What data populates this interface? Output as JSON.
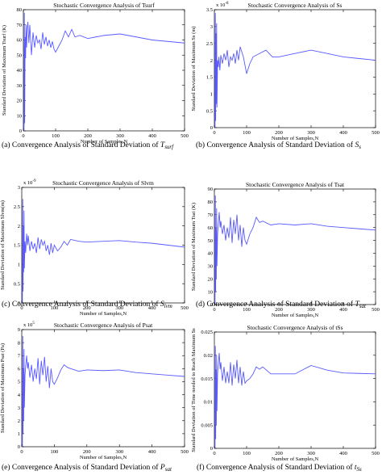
{
  "chart_data": [
    {
      "type": "line",
      "title": "Stochastic Convergence Analysis of Tsurf",
      "xlabel": "Number of Samples,N",
      "ylabel": "Standard Deviation of Maximum Tsurf  (K)",
      "y_exponent": "",
      "xlim": [
        0,
        500
      ],
      "ylim": [
        0,
        80
      ],
      "xticks": [
        "0",
        "100",
        "200",
        "300",
        "400",
        "500"
      ],
      "yticks": [
        "0",
        "10",
        "20",
        "30",
        "40",
        "50",
        "60",
        "70",
        "80"
      ],
      "grid": false,
      "caption": {
        "letter": "(a)",
        "text": "Convergence Analysis of Standard Deviation of ",
        "var": "T",
        "sub": "surf"
      },
      "x": [
        2,
        3,
        4,
        5,
        6,
        7,
        8,
        10,
        12,
        14,
        17,
        20,
        25,
        30,
        35,
        40,
        45,
        50,
        55,
        60,
        65,
        70,
        75,
        80,
        85,
        90,
        95,
        100,
        110,
        120,
        130,
        140,
        150,
        160,
        175,
        200,
        225,
        250,
        300,
        350,
        400,
        450,
        500
      ],
      "y": [
        0,
        78,
        5,
        45,
        62,
        48,
        70,
        55,
        68,
        72,
        58,
        70,
        50,
        65,
        55,
        63,
        58,
        60,
        54,
        65,
        57,
        62,
        56,
        60,
        55,
        59,
        54,
        52,
        56,
        60,
        66,
        62,
        67,
        62,
        63,
        61,
        62,
        63,
        64,
        62,
        60,
        59,
        58
      ]
    },
    {
      "type": "line",
      "title": "Stochastic Convergence Analysis of Ss",
      "xlabel": "Number of Samples,N",
      "ylabel": "Standard Deviation of Maximum Ss  (m)",
      "y_exponent": "x 10",
      "y_exponent_power": "-8",
      "xlim": [
        0,
        500
      ],
      "ylim": [
        0,
        3.5
      ],
      "xticks": [
        "0",
        "100",
        "200",
        "300",
        "400",
        "500"
      ],
      "yticks": [
        "0",
        "0.5",
        "1",
        "1.5",
        "2",
        "2.5",
        "3",
        "3.5"
      ],
      "grid": false,
      "caption": {
        "letter": "(b)",
        "text": "Convergence Analysis of Standard Deviation of ",
        "var": "S",
        "sub": "s"
      },
      "x": [
        2,
        3,
        4,
        5,
        6,
        7,
        8,
        10,
        12,
        14,
        17,
        20,
        25,
        30,
        35,
        40,
        45,
        50,
        55,
        60,
        65,
        70,
        75,
        80,
        90,
        100,
        110,
        120,
        140,
        160,
        180,
        200,
        250,
        300,
        350,
        400,
        450,
        500
      ],
      "y": [
        0,
        3.4,
        0.2,
        2.8,
        0.7,
        3.1,
        0.6,
        2.0,
        1.8,
        2.1,
        1.7,
        2.15,
        1.9,
        2.2,
        2.0,
        2.3,
        1.8,
        2.1,
        2.0,
        2.2,
        1.9,
        2.3,
        2.0,
        2.4,
        2.1,
        1.6,
        1.9,
        2.1,
        2.2,
        2.3,
        2.1,
        2.1,
        2.2,
        2.3,
        2.2,
        2.1,
        2.05,
        2.0
      ]
    },
    {
      "type": "line",
      "title": "Stochastic Convergence Analysis of Slvm",
      "xlabel": "Number of Samples,N",
      "ylabel": "Standard Deviation of Maximum Slvm(m)",
      "y_exponent": "x 10",
      "y_exponent_power": "-9",
      "xlim": [
        0,
        500
      ],
      "ylim": [
        0,
        3
      ],
      "xticks": [
        "0",
        "100",
        "200",
        "300",
        "400",
        "500"
      ],
      "yticks": [
        "0",
        "0.5",
        "1",
        "1.5",
        "2",
        "2.5",
        "3"
      ],
      "grid": false,
      "caption": {
        "letter": "(c)",
        "text": "Convergence Analysis of Standard Deviation of ",
        "var": "S",
        "sub": "lvm"
      },
      "x": [
        2,
        3,
        4,
        5,
        6,
        7,
        8,
        10,
        12,
        15,
        18,
        20,
        25,
        30,
        35,
        40,
        45,
        50,
        55,
        60,
        65,
        70,
        75,
        80,
        85,
        90,
        95,
        100,
        110,
        120,
        130,
        140,
        150,
        175,
        200,
        250,
        300,
        350,
        400,
        450,
        500
      ],
      "y": [
        0,
        2.7,
        0.3,
        2.0,
        0.8,
        2.4,
        0.9,
        1.6,
        1.3,
        1.8,
        1.5,
        1.75,
        1.35,
        1.6,
        1.4,
        1.55,
        1.3,
        1.7,
        1.4,
        1.65,
        1.5,
        1.6,
        1.35,
        1.5,
        1.25,
        1.55,
        1.3,
        1.5,
        1.35,
        1.45,
        1.6,
        1.5,
        1.65,
        1.6,
        1.58,
        1.6,
        1.62,
        1.58,
        1.55,
        1.5,
        1.45
      ]
    },
    {
      "type": "line",
      "title": "Stochastic Convergence Analysis of Tsat",
      "xlabel": "Number of Samples,N",
      "ylabel": "Standard Deviation of Maximum Tsat (K)",
      "y_exponent": "",
      "xlim": [
        0,
        500
      ],
      "ylim": [
        0,
        90
      ],
      "xticks": [
        "0",
        "100",
        "200",
        "300",
        "400",
        "500"
      ],
      "yticks": [
        "0",
        "10",
        "20",
        "30",
        "40",
        "50",
        "60",
        "70",
        "80",
        "90"
      ],
      "grid": false,
      "caption": {
        "letter": "(d)",
        "text": "Convergence Analysis of Standard Deviation of ",
        "var": "T",
        "sub": "sat"
      },
      "x": [
        2,
        3,
        4,
        5,
        6,
        7,
        8,
        10,
        12,
        15,
        18,
        20,
        25,
        30,
        35,
        40,
        45,
        50,
        55,
        60,
        65,
        70,
        75,
        80,
        85,
        90,
        95,
        100,
        110,
        120,
        130,
        140,
        150,
        175,
        200,
        250,
        300,
        350,
        400,
        450,
        500
      ],
      "y": [
        0,
        85,
        10,
        60,
        20,
        75,
        30,
        55,
        62,
        72,
        60,
        65,
        55,
        62,
        50,
        60,
        52,
        68,
        48,
        66,
        55,
        70,
        50,
        62,
        45,
        60,
        50,
        47,
        55,
        60,
        68,
        64,
        65,
        62,
        63,
        62,
        63,
        61,
        60,
        59,
        58
      ]
    },
    {
      "type": "line",
      "title": "Stochastic Convergence Analysis of Psat",
      "xlabel": "Number of Samples,N",
      "ylabel": "Standard Deviation of Maximum Psat  (Pa)",
      "y_exponent": "x 10",
      "y_exponent_power": "5",
      "xlim": [
        0,
        500
      ],
      "ylim": [
        0,
        9
      ],
      "xticks": [
        "0",
        "100",
        "200",
        "300",
        "400",
        "500"
      ],
      "yticks": [
        "0",
        "1",
        "2",
        "3",
        "4",
        "5",
        "6",
        "7",
        "8",
        "9"
      ],
      "grid": false,
      "caption": {
        "letter": "(e)",
        "text": "Convergence Analysis of Standard Deviation of ",
        "var": "P",
        "sub": "sat"
      },
      "x": [
        2,
        3,
        4,
        5,
        6,
        7,
        8,
        10,
        12,
        15,
        18,
        20,
        25,
        30,
        35,
        40,
        45,
        50,
        55,
        60,
        65,
        70,
        75,
        80,
        85,
        90,
        95,
        100,
        110,
        120,
        130,
        140,
        150,
        175,
        200,
        250,
        300,
        350,
        400,
        450,
        500
      ],
      "y": [
        0,
        8.5,
        1.0,
        6.0,
        2.0,
        7.5,
        3.0,
        5.5,
        6.2,
        7.0,
        6.0,
        6.5,
        5.3,
        6.3,
        5.0,
        6.0,
        5.2,
        6.8,
        4.8,
        6.6,
        5.5,
        6.9,
        5.0,
        6.2,
        4.5,
        6.0,
        5.0,
        4.8,
        5.3,
        5.9,
        6.3,
        6.1,
        6.0,
        5.8,
        5.9,
        5.85,
        5.9,
        5.7,
        5.6,
        5.5,
        5.4
      ]
    },
    {
      "type": "line",
      "title": "Stochastic Convergence Analysis of tSs",
      "xlabel": "Number of Samples,N",
      "ylabel": "Standard Deviation of Time needed to Reach Maximum Ss",
      "y_exponent": "",
      "xlim": [
        0,
        500
      ],
      "ylim": [
        0,
        0.025
      ],
      "xticks": [
        "0",
        "100",
        "200",
        "300",
        "400",
        "500"
      ],
      "yticks": [
        "0",
        "0.005",
        "0.01",
        "0.015",
        "0.02",
        "0.025"
      ],
      "grid": false,
      "caption": {
        "letter": "(f)",
        "text": "Convergence Analysis of Standard Deviation of ",
        "var": "t",
        "sub": "Ss"
      },
      "x": [
        2,
        3,
        4,
        5,
        6,
        7,
        8,
        10,
        12,
        15,
        18,
        20,
        25,
        30,
        35,
        40,
        45,
        50,
        55,
        60,
        65,
        70,
        75,
        80,
        85,
        90,
        95,
        100,
        110,
        120,
        130,
        140,
        150,
        175,
        200,
        250,
        300,
        350,
        400,
        450,
        500
      ],
      "y": [
        0,
        0.022,
        0.002,
        0.017,
        0.005,
        0.02,
        0.008,
        0.016,
        0.018,
        0.0205,
        0.017,
        0.0185,
        0.0145,
        0.0175,
        0.014,
        0.0165,
        0.014,
        0.0185,
        0.0135,
        0.018,
        0.015,
        0.019,
        0.014,
        0.0175,
        0.0135,
        0.0165,
        0.014,
        0.0145,
        0.015,
        0.016,
        0.0175,
        0.017,
        0.0175,
        0.016,
        0.016,
        0.016,
        0.0178,
        0.0168,
        0.0162,
        0.0161,
        0.016
      ]
    }
  ]
}
